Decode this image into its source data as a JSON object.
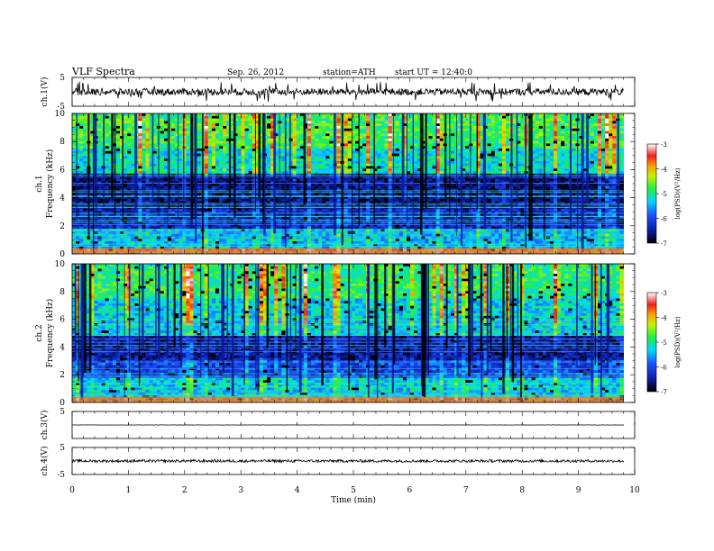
{
  "header": {
    "title": "VLF Spectra",
    "date": "Sep. 26, 2012",
    "station": "station=ATH",
    "start": "start  UT =  12:40:0"
  },
  "chart_data": [
    {
      "type": "line",
      "panel": "ch1-waveform",
      "ylabel": "ch.1(V)",
      "ylim": [
        -5,
        5
      ],
      "yticks": [
        "5",
        "-5"
      ],
      "xlim": [
        0,
        10
      ],
      "baseline": 0,
      "noise_amplitude": 1.2,
      "spike_amplitude": 3.5
    },
    {
      "type": "heatmap",
      "panel": "ch1-spectrogram",
      "ylabel_channel": "ch.1",
      "ylabel": "Frequency (kHz)",
      "ylim": [
        0,
        10
      ],
      "yticks": [
        "0",
        "2",
        "4",
        "6",
        "8",
        "10"
      ],
      "xlim": [
        0,
        9.8
      ],
      "colorbar": {
        "label": "log(PSD)(V²/Hz)",
        "range": [
          -7,
          -3
        ],
        "ticks": [
          "-3",
          "-4",
          "-5",
          "-6",
          "-7"
        ]
      },
      "bands": [
        {
          "from_khz": 0,
          "to_khz": 0.4,
          "level": -3.6
        },
        {
          "from_khz": 0.4,
          "to_khz": 1.8,
          "level": -5.4
        },
        {
          "from_khz": 1.8,
          "to_khz": 3.2,
          "level": -6.3
        },
        {
          "from_khz": 3.2,
          "to_khz": 5.8,
          "level": -6.6
        },
        {
          "from_khz": 5.8,
          "to_khz": 7.5,
          "level": -5.2
        },
        {
          "from_khz": 7.5,
          "to_khz": 10,
          "level": -4.8
        }
      ]
    },
    {
      "type": "heatmap",
      "panel": "ch2-spectrogram",
      "ylabel_channel": "ch.2",
      "ylabel": "Frequency (kHz)",
      "ylim": [
        0,
        10
      ],
      "yticks": [
        "0",
        "2",
        "4",
        "6",
        "8",
        "10"
      ],
      "xlim": [
        0,
        9.8
      ],
      "colorbar": {
        "label": "log(PSD)(V²/Hz)",
        "range": [
          -7,
          -3
        ],
        "ticks": [
          "-3",
          "-4",
          "-5",
          "-6",
          "-7"
        ]
      },
      "bands": [
        {
          "from_khz": 0,
          "to_khz": 0.4,
          "level": -3.6
        },
        {
          "from_khz": 0.4,
          "to_khz": 1.8,
          "level": -5.3
        },
        {
          "from_khz": 1.8,
          "to_khz": 3.0,
          "level": -6.0
        },
        {
          "from_khz": 3.0,
          "to_khz": 4.8,
          "level": -6.5
        },
        {
          "from_khz": 4.8,
          "to_khz": 7.5,
          "level": -5.3
        },
        {
          "from_khz": 7.5,
          "to_khz": 10,
          "level": -4.9
        }
      ]
    },
    {
      "type": "line",
      "panel": "ch3-waveform",
      "ylabel": "ch.3(V)",
      "ylim": [
        -5,
        5
      ],
      "yticks": [
        "5"
      ],
      "xlim": [
        0,
        10
      ],
      "baseline": 0,
      "noise_amplitude": 0.05,
      "spike_amplitude": 0
    },
    {
      "type": "line",
      "panel": "ch4-waveform",
      "ylabel": "ch.4(V)",
      "ylim": [
        -5,
        5
      ],
      "yticks": [
        "5",
        "-5"
      ],
      "xlim": [
        0,
        10
      ],
      "baseline": 0,
      "noise_amplitude": 0.5,
      "spike_amplitude": 0
    }
  ],
  "xaxis": {
    "label": "Time  (min)",
    "ticks": [
      "0",
      "1",
      "2",
      "3",
      "4",
      "5",
      "6",
      "7",
      "8",
      "9",
      "10"
    ],
    "data_end_min": 9.8
  }
}
